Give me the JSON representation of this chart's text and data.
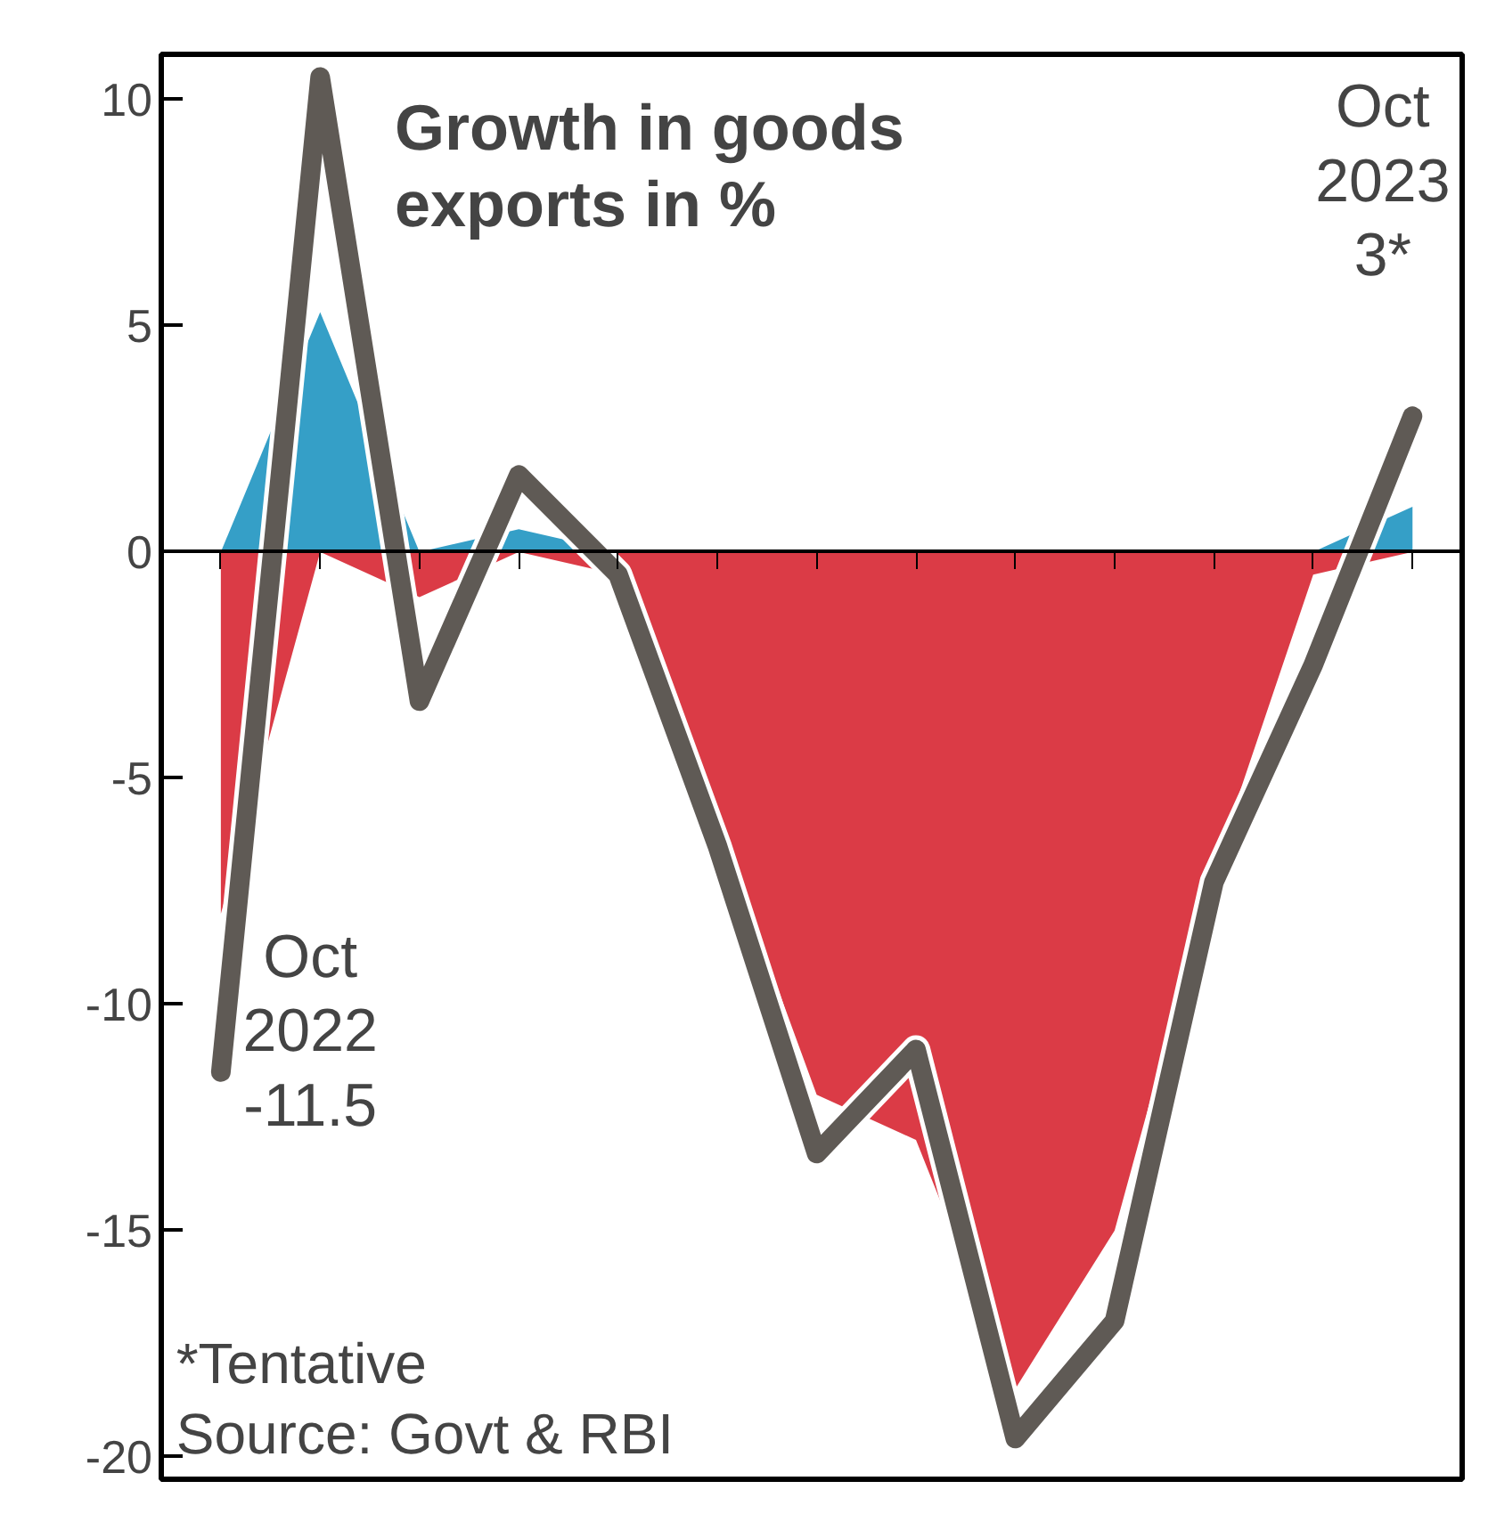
{
  "chart_data": {
    "type": "line",
    "title": "Growth in goods\nexports in %",
    "categories": [
      null,
      null,
      null,
      null,
      null,
      null,
      null,
      null,
      null,
      null,
      null,
      null,
      null
    ],
    "series": [
      {
        "type": "area",
        "color": "#d9303c",
        "values": [
          -8,
          0,
          -1,
          0,
          -0.5,
          -6,
          -12,
          -13,
          -18.5,
          -15,
          -7,
          -0.5,
          0
        ]
      },
      {
        "type": "area",
        "color": "#2a9ac4",
        "values": [
          0,
          5.3,
          0,
          0.5,
          0,
          0,
          0,
          0,
          0,
          0,
          0,
          0,
          1
        ]
      },
      {
        "color": "#5f5a55",
        "values": [
          -11.5,
          10.5,
          -3.3,
          1.7,
          -0.5,
          -6.5,
          -13.3,
          -11,
          -19.6,
          -17,
          -7.3,
          -2.5,
          3
        ]
      }
    ],
    "ylim": [
      -20.5,
      11
    ],
    "yticks": [
      10,
      5,
      0,
      -5,
      -10,
      -15,
      -20
    ],
    "annotations": [
      "Oct\n2022\n-11.5",
      "Oct\n2023\n3*",
      "*Tentative\nSource: Govt & RBI"
    ],
    "marker": "none",
    "line_style": "solid"
  }
}
